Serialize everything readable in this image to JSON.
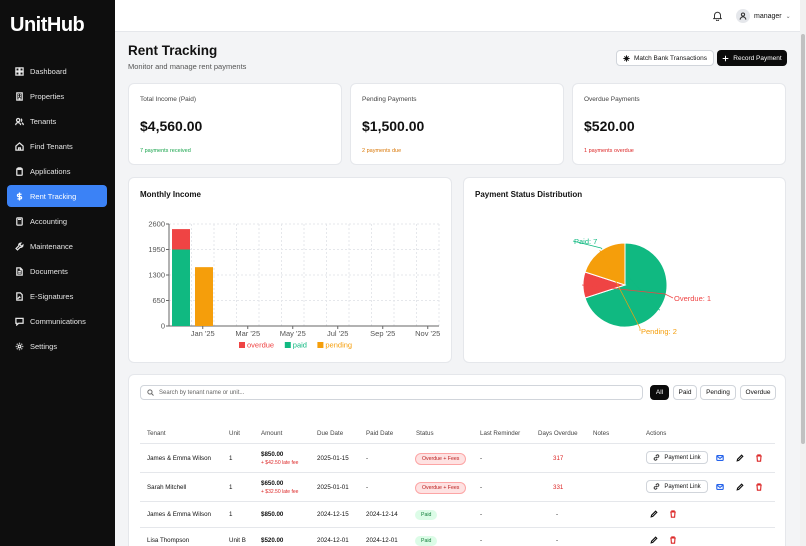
{
  "app": {
    "logo": "UnitHub"
  },
  "sidebar": {
    "items": [
      {
        "label": "Dashboard",
        "icon": "dashboard-icon"
      },
      {
        "label": "Properties",
        "icon": "building-icon"
      },
      {
        "label": "Tenants",
        "icon": "users-icon"
      },
      {
        "label": "Find Tenants",
        "icon": "home-search-icon"
      },
      {
        "label": "Applications",
        "icon": "clipboard-icon"
      },
      {
        "label": "Rent Tracking",
        "icon": "dollar-icon",
        "active": true
      },
      {
        "label": "Accounting",
        "icon": "calculator-icon"
      },
      {
        "label": "Maintenance",
        "icon": "wrench-icon"
      },
      {
        "label": "Documents",
        "icon": "file-icon"
      },
      {
        "label": "E-Signatures",
        "icon": "signature-icon"
      },
      {
        "label": "Communications",
        "icon": "message-icon"
      },
      {
        "label": "Settings",
        "icon": "gear-icon"
      }
    ]
  },
  "topbar": {
    "user": "manager"
  },
  "header": {
    "title": "Rent Tracking",
    "subtitle": "Monitor and manage rent payments",
    "match_label": "Match Bank Transactions",
    "record_label": "Record Payment"
  },
  "stats": [
    {
      "label": "Total Income (Paid)",
      "value": "$4,560.00",
      "note": "7 payments received",
      "color": "#16a34a"
    },
    {
      "label": "Pending Payments",
      "value": "$1,500.00",
      "note": "2 payments due",
      "color": "#d97706"
    },
    {
      "label": "Overdue Payments",
      "value": "$520.00",
      "note": "1 payments overdue",
      "color": "#dc2626"
    }
  ],
  "monthly_title": "Monthly Income",
  "distribution_title": "Payment Status Distribution",
  "chart_data": [
    {
      "type": "bar",
      "title": "Monthly Income",
      "categories": [
        "Jan '25",
        "Mar '25",
        "May '25",
        "Jul '25",
        "Sep '25",
        "Nov '25"
      ],
      "series": [
        {
          "name": "paid",
          "color": "#10b981",
          "values": [
            1950,
            0,
            0,
            0,
            0,
            0
          ]
        },
        {
          "name": "overdue",
          "color": "#ef4444",
          "values": [
            520,
            0,
            0,
            0,
            0,
            0
          ]
        },
        {
          "name": "pending",
          "color": "#f59e0b",
          "values": [
            1500,
            0,
            0,
            0,
            0,
            0
          ]
        }
      ],
      "yticks": [
        "0",
        "650",
        "1300",
        "1950",
        "2600"
      ],
      "ylim": [
        0,
        2600
      ],
      "legend": [
        "overdue",
        "paid",
        "pending"
      ],
      "legend_position": "bottom"
    },
    {
      "type": "pie",
      "title": "Payment Status Distribution",
      "slices": [
        {
          "label": "Paid: 7",
          "value": 7,
          "color": "#10b981"
        },
        {
          "label": "Overdue: 1",
          "value": 1,
          "color": "#ef4444"
        },
        {
          "label": "Pending: 2",
          "value": 2,
          "color": "#f59e0b"
        }
      ]
    }
  ],
  "table": {
    "search_placeholder": "Search by tenant name or unit...",
    "filters": [
      "All",
      "Paid",
      "Pending",
      "Overdue"
    ],
    "columns": [
      "Tenant",
      "Unit",
      "Amount",
      "Due Date",
      "Paid Date",
      "Status",
      "Last Reminder",
      "Days Overdue",
      "Notes",
      "Actions"
    ],
    "payment_link_label": "Payment Link",
    "rows": [
      {
        "tenant": "James & Emma Wilson",
        "unit": "1",
        "amount": "$850.00",
        "fee": "+ $42.50 late fee",
        "due": "2025-01-15",
        "paid": "-",
        "status": "Overdue + Fees",
        "reminder": "-",
        "days": "317",
        "notes": ""
      },
      {
        "tenant": "Sarah Mitchell",
        "unit": "1",
        "amount": "$650.00",
        "fee": "+ $32.50 late fee",
        "due": "2025-01-01",
        "paid": "-",
        "status": "Overdue + Fees",
        "reminder": "-",
        "days": "331",
        "notes": ""
      },
      {
        "tenant": "James & Emma Wilson",
        "unit": "1",
        "amount": "$850.00",
        "fee": "",
        "due": "2024-12-15",
        "paid": "2024-12-14",
        "status": "Paid",
        "reminder": "-",
        "days": "-",
        "notes": ""
      },
      {
        "tenant": "Lisa Thompson",
        "unit": "Unit B",
        "amount": "$520.00",
        "fee": "",
        "due": "2024-12-01",
        "paid": "2024-12-01",
        "status": "Paid",
        "reminder": "-",
        "days": "-",
        "notes": ""
      }
    ]
  }
}
